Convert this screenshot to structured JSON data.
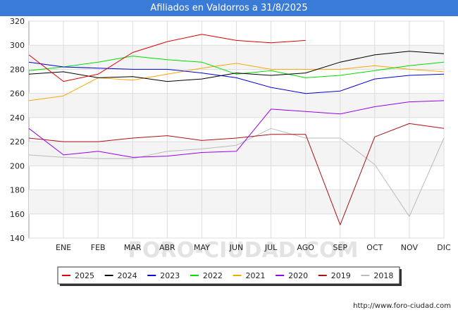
{
  "header": {
    "title": "Afiliados en Valdorros a 31/8/2025"
  },
  "footer": {
    "source": "http://www.foro-ciudad.com",
    "watermark": "FORO-CIUDAD.COM"
  },
  "colors": {
    "title_bg": "#3b7bd8",
    "2025": "#dd0000",
    "2024": "#000000",
    "2023": "#0000dd",
    "2022": "#00dd00",
    "2021": "#ffa500",
    "2020": "#9900ee",
    "2019": "#aa1111",
    "2018": "#bbbbbb"
  },
  "chart_data": {
    "type": "line",
    "title": "Afiliados en Valdorros a 31/8/2025",
    "categories": [
      "",
      "ENE",
      "FEB",
      "MAR",
      "ABR",
      "MAY",
      "JUN",
      "JUL",
      "AGO",
      "SEP",
      "OCT",
      "NOV",
      "DIC"
    ],
    "ylim": [
      140,
      320
    ],
    "yticks": [
      140,
      160,
      180,
      200,
      220,
      240,
      260,
      280,
      300,
      320
    ],
    "grid": true,
    "legend_position": "bottom",
    "series": [
      {
        "name": "2025",
        "color": "#dd0000",
        "values": [
          292,
          270,
          276,
          294,
          303,
          309,
          304,
          302,
          304,
          null,
          null,
          null,
          null
        ]
      },
      {
        "name": "2024",
        "color": "#000000",
        "values": [
          276,
          278,
          273,
          274,
          270,
          272,
          277,
          275,
          277,
          286,
          292,
          295,
          293
        ]
      },
      {
        "name": "2023",
        "color": "#0000dd",
        "values": [
          286,
          282,
          281,
          280,
          280,
          277,
          273,
          265,
          260,
          262,
          272,
          275,
          276
        ]
      },
      {
        "name": "2022",
        "color": "#00dd00",
        "values": [
          279,
          282,
          286,
          291,
          288,
          286,
          276,
          279,
          273,
          275,
          279,
          283,
          286
        ]
      },
      {
        "name": "2021",
        "color": "#ffa500",
        "values": [
          254,
          258,
          273,
          271,
          276,
          281,
          285,
          280,
          280,
          280,
          283,
          280,
          278
        ]
      },
      {
        "name": "2020",
        "color": "#9900ee",
        "values": [
          231,
          209,
          212,
          207,
          208,
          211,
          212,
          247,
          245,
          243,
          249,
          253,
          254
        ]
      },
      {
        "name": "2019",
        "color": "#aa1111",
        "values": [
          223,
          220,
          220,
          223,
          225,
          221,
          223,
          226,
          226,
          151,
          224,
          235,
          231
        ]
      },
      {
        "name": "2018",
        "color": "#bbbbbb",
        "values": [
          209,
          207,
          206,
          206,
          212,
          214,
          217,
          231,
          223,
          223,
          201,
          158,
          223
        ]
      }
    ]
  }
}
